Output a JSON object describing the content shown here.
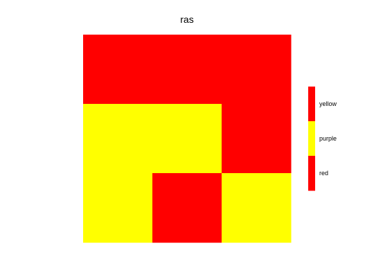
{
  "chart_data": {
    "type": "heatmap",
    "title": "ras",
    "xlabel": "",
    "ylabel": "",
    "grid": false,
    "legend_position": "right",
    "legend": [
      {
        "label": "yellow",
        "color": "#ff0000"
      },
      {
        "label": "purple",
        "color": "#ffff00"
      },
      {
        "label": "red",
        "color": "#ff0000"
      }
    ],
    "rows": 3,
    "cols": 3,
    "cells": [
      [
        "#ff0000",
        "#ff0000",
        "#ff0000"
      ],
      [
        "#ffff00",
        "#ffff00",
        "#ff0000"
      ],
      [
        "#ffff00",
        "#ff0000",
        "#ffff00"
      ]
    ]
  }
}
